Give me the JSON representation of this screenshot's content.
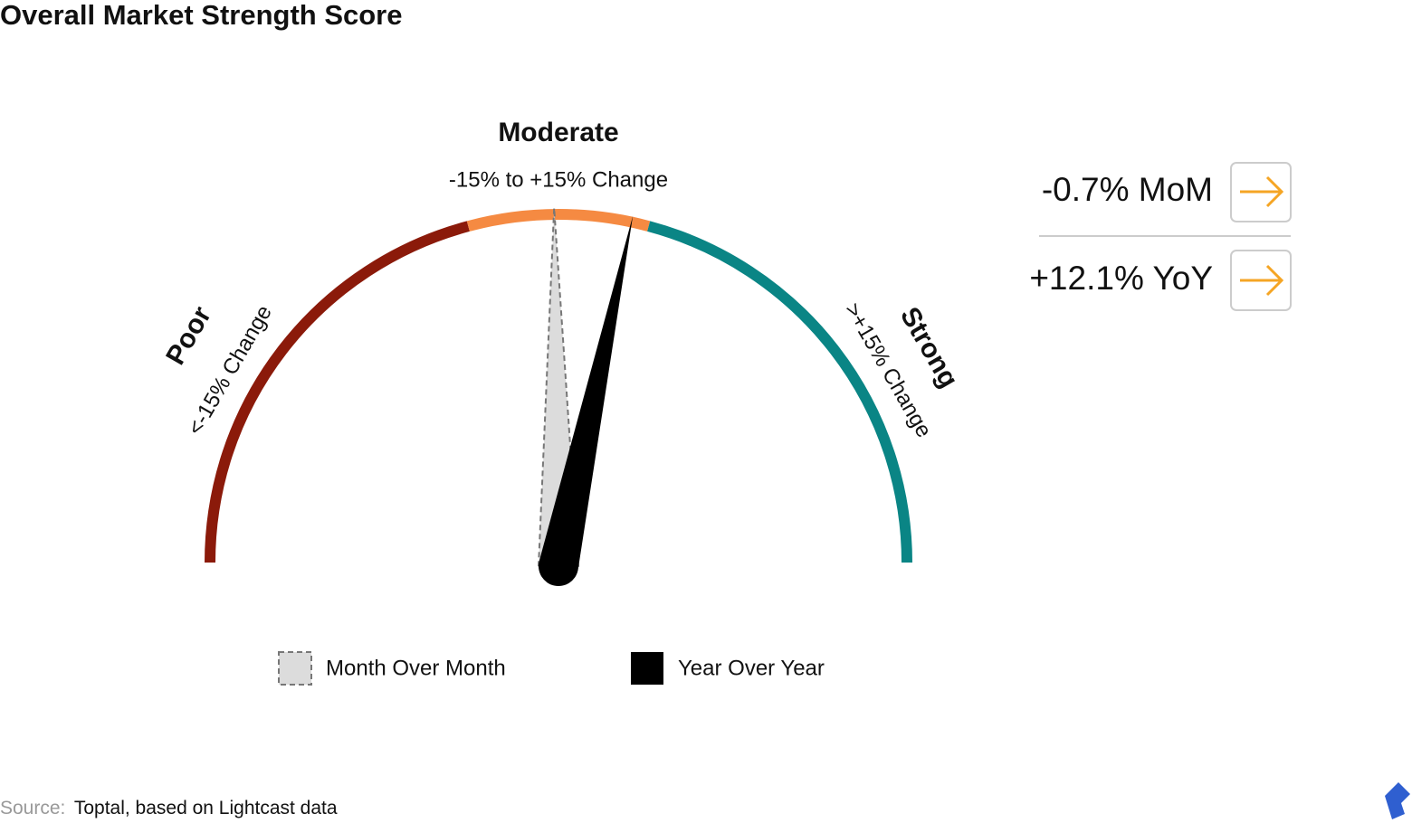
{
  "chart_data": {
    "type": "gauge",
    "title": "Overall Market Strength Score",
    "ylim": [
      -90,
      90
    ],
    "bands": [
      {
        "label": "Poor",
        "sublabel": "<-15% Change",
        "from": -90,
        "to": -15,
        "color": "#8b1a0a"
      },
      {
        "label": "Moderate",
        "sublabel": "-15% to +15% Change",
        "from": -15,
        "to": 15,
        "color": "#f58a42"
      },
      {
        "label": "Strong",
        "sublabel": ">+15% Change",
        "from": 15,
        "to": 90,
        "color": "#0a8585"
      }
    ],
    "series": [
      {
        "name": "Month Over Month",
        "color": "#dcdcdc",
        "values": [
          -0.7
        ],
        "value_labels": [
          "-0.7% MoM"
        ]
      },
      {
        "name": "Year Over Year",
        "color": "#000000",
        "values": [
          12.1
        ],
        "value_labels": [
          "+12.1% YoY"
        ]
      }
    ],
    "source_label": "Source:",
    "source": "Toptal, based on Lightcast data"
  }
}
